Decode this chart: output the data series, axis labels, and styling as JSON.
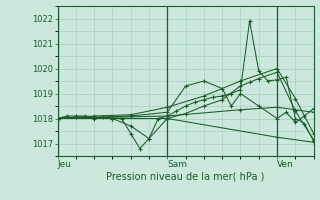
{
  "bg_color": "#cce8dc",
  "grid_color": "#a0ccbb",
  "line_color": "#1a5c2a",
  "title": "Pression niveau de la mer( hPa )",
  "xlabel_ticks": [
    "Jeu",
    "Sam",
    "Ven"
  ],
  "xlabel_tick_positions": [
    0.0,
    0.4286,
    0.8571
  ],
  "ylim": [
    1016.5,
    1022.5
  ],
  "yticks": [
    1017,
    1018,
    1019,
    1020,
    1021,
    1022
  ],
  "xlim": [
    0,
    56
  ],
  "series": [
    [
      0,
      1018.0,
      2,
      1018.1,
      4,
      1018.1,
      6,
      1018.1,
      8,
      1018.05,
      10,
      1018.05,
      12,
      1018.0,
      14,
      1018.0,
      16,
      1017.4,
      18,
      1016.8,
      20,
      1017.2,
      22,
      1018.0,
      24,
      1018.1,
      26,
      1018.3,
      28,
      1018.5,
      30,
      1018.65,
      32,
      1018.75,
      34,
      1018.85,
      36,
      1018.9,
      38,
      1019.0,
      40,
      1019.15,
      42,
      1021.9,
      44,
      1019.9,
      46,
      1019.5,
      48,
      1019.55,
      50,
      1019.65,
      52,
      1018.0,
      54,
      1017.8,
      56,
      1017.1
    ],
    [
      0,
      1018.0,
      4,
      1018.05,
      8,
      1018.0,
      12,
      1018.0,
      16,
      1017.7,
      20,
      1017.2,
      24,
      1018.0,
      28,
      1018.2,
      32,
      1018.5,
      36,
      1018.75,
      40,
      1019.3,
      42,
      1019.45,
      44,
      1019.6,
      48,
      1019.85,
      52,
      1018.3,
      56,
      1017.15
    ],
    [
      0,
      1018.0,
      8,
      1018.1,
      16,
      1018.15,
      24,
      1018.45,
      32,
      1018.9,
      40,
      1019.5,
      48,
      1020.0,
      52,
      1018.8,
      56,
      1017.4
    ],
    [
      0,
      1018.0,
      24,
      1018.1,
      40,
      1018.35,
      48,
      1018.45,
      52,
      1018.35,
      56,
      1018.25
    ],
    [
      0,
      1018.0,
      16,
      1018.1,
      24,
      1018.25,
      28,
      1019.3,
      32,
      1019.5,
      36,
      1019.2,
      38,
      1018.5,
      40,
      1019.0,
      44,
      1018.5,
      48,
      1018.0,
      50,
      1018.25,
      52,
      1017.85,
      54,
      1018.1,
      56,
      1018.4
    ],
    [
      0,
      1018.0,
      24,
      1018.0,
      48,
      1017.25,
      56,
      1017.05
    ]
  ],
  "figsize": [
    3.2,
    2.0
  ],
  "dpi": 100,
  "ytick_fontsize": 6,
  "xtick_fontsize": 6.5,
  "xlabel_fontsize": 7
}
